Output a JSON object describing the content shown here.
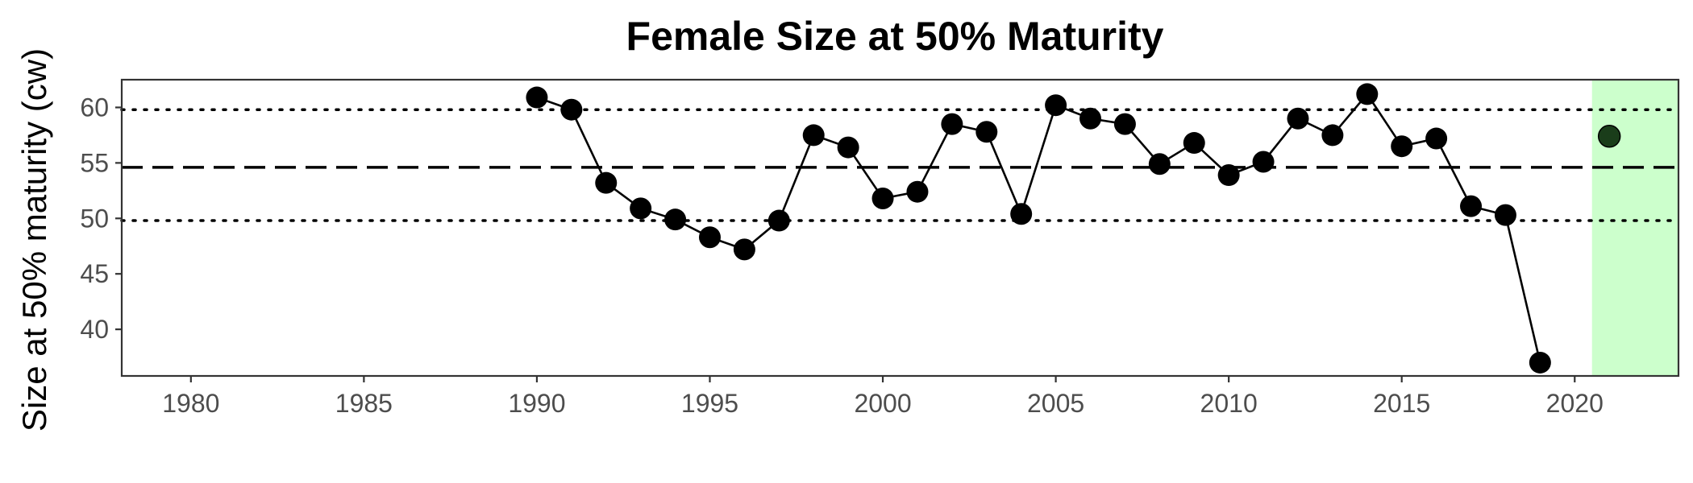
{
  "chart_data": {
    "type": "scatter",
    "title": "Female Size at 50% Maturity",
    "xlabel": "",
    "ylabel": "Size at 50% maturity (cw)",
    "xlim": [
      1978,
      2023
    ],
    "ylim": [
      35.8,
      62.5
    ],
    "x_ticks": [
      1980,
      1985,
      1990,
      1995,
      2000,
      2005,
      2010,
      2015,
      2020
    ],
    "y_ticks": [
      40,
      45,
      50,
      55,
      60
    ],
    "grid": false,
    "series": [
      {
        "x": [
          1990,
          1991,
          1992,
          1993,
          1994,
          1995,
          1996,
          1997,
          1998,
          1999,
          2000,
          2001,
          2002,
          2003,
          2004,
          2005,
          2006,
          2007,
          2008,
          2009,
          2010,
          2011,
          2012,
          2013,
          2014,
          2015,
          2016,
          2017,
          2018,
          2019
        ],
        "y": [
          60.9,
          59.8,
          53.2,
          50.9,
          49.9,
          48.3,
          47.2,
          49.8,
          57.5,
          56.4,
          51.8,
          52.4,
          58.5,
          57.8,
          50.4,
          60.2,
          59.0,
          58.5,
          54.9,
          56.8,
          53.9,
          55.1,
          59.0,
          57.5,
          61.2,
          56.5,
          57.2,
          51.1,
          50.3,
          37.0
        ],
        "color": "#000000"
      },
      {
        "x": [
          2021
        ],
        "y": [
          57.4
        ],
        "color": "#1a3d1a"
      }
    ],
    "reference_lines": [
      {
        "y": 54.6,
        "style": "dashed"
      },
      {
        "y": 59.8,
        "style": "dotted"
      },
      {
        "y": 49.8,
        "style": "dotted"
      }
    ],
    "highlight_region": {
      "x": [
        2020.5,
        2023
      ],
      "color": "#ccffcc"
    }
  }
}
